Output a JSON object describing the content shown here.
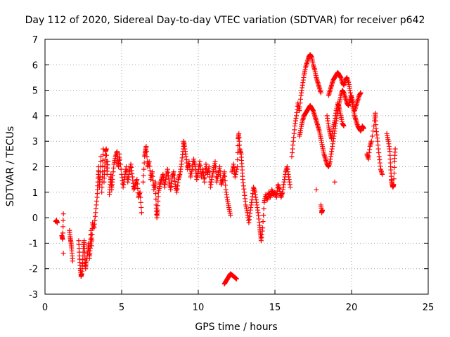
{
  "chart_data": {
    "type": "scatter",
    "title": "Day 112 of 2020, Sidereal Day-to-day VTEC variation (SDTVAR) for receiver p642",
    "xlabel": "GPS time / hours",
    "ylabel": "SDTVAR / TECUs",
    "xlim": [
      0,
      25
    ],
    "ylim": [
      -3,
      7
    ],
    "xticks": [
      0,
      5,
      10,
      15,
      20,
      25
    ],
    "yticks": [
      -3,
      -2,
      -1,
      0,
      1,
      2,
      3,
      4,
      5,
      6,
      7
    ],
    "grid": true,
    "marker": "plus",
    "color": "#ff0000",
    "series": [
      {
        "name": "SDTVAR",
        "points": [
          [
            0.7,
            -0.15
          ],
          [
            0.75,
            -0.1
          ],
          [
            0.8,
            -0.2
          ],
          [
            1.1,
            -0.7
          ],
          [
            1.15,
            -0.85
          ],
          [
            1.2,
            0.15
          ],
          [
            1.2,
            -1.4
          ],
          [
            1.6,
            -0.5
          ],
          [
            1.65,
            -0.8
          ],
          [
            1.7,
            -1.0
          ],
          [
            1.75,
            -1.3
          ],
          [
            1.8,
            -1.7
          ],
          [
            2.2,
            -0.9
          ],
          [
            2.25,
            -1.5
          ],
          [
            2.3,
            -2.0
          ],
          [
            2.35,
            -2.3
          ],
          [
            2.4,
            -2.2
          ],
          [
            2.45,
            -1.8
          ],
          [
            2.5,
            -1.2
          ],
          [
            2.55,
            -0.9
          ],
          [
            2.6,
            -1.5
          ],
          [
            2.65,
            -2.0
          ],
          [
            2.7,
            -1.7
          ],
          [
            2.8,
            -1.3
          ],
          [
            2.85,
            -1.0
          ],
          [
            2.9,
            -1.6
          ],
          [
            2.95,
            -1.2
          ],
          [
            3.0,
            -0.5
          ],
          [
            3.05,
            -1.1
          ],
          [
            3.1,
            -0.2
          ],
          [
            3.2,
            -0.4
          ],
          [
            3.3,
            0.2
          ],
          [
            3.4,
            0.8
          ],
          [
            3.45,
            1.4
          ],
          [
            3.5,
            2.0
          ],
          [
            3.55,
            1.2
          ],
          [
            3.6,
            1.6
          ],
          [
            3.65,
            2.4
          ],
          [
            3.7,
            1.0
          ],
          [
            3.75,
            1.8
          ],
          [
            3.8,
            2.7
          ],
          [
            3.85,
            1.4
          ],
          [
            3.9,
            2.0
          ],
          [
            3.95,
            2.6
          ],
          [
            4.0,
            2.7
          ],
          [
            4.05,
            1.7
          ],
          [
            4.1,
            2.2
          ],
          [
            4.2,
            0.9
          ],
          [
            4.25,
            1.3
          ],
          [
            4.3,
            1.7
          ],
          [
            4.35,
            1.1
          ],
          [
            4.4,
            1.5
          ],
          [
            4.5,
            2.1
          ],
          [
            4.6,
            2.4
          ],
          [
            4.7,
            2.6
          ],
          [
            4.75,
            2.2
          ],
          [
            4.8,
            2.0
          ],
          [
            4.85,
            2.5
          ],
          [
            5.0,
            1.7
          ],
          [
            5.1,
            1.2
          ],
          [
            5.2,
            1.6
          ],
          [
            5.3,
            2.0
          ],
          [
            5.4,
            1.4
          ],
          [
            5.5,
            1.8
          ],
          [
            5.6,
            2.1
          ],
          [
            5.7,
            1.6
          ],
          [
            5.8,
            1.1
          ],
          [
            5.9,
            1.3
          ],
          [
            6.0,
            1.5
          ],
          [
            6.1,
            0.8
          ],
          [
            6.2,
            1.0
          ],
          [
            6.3,
            0.2
          ],
          [
            6.4,
            1.4
          ],
          [
            6.5,
            2.4
          ],
          [
            6.55,
            2.6
          ],
          [
            6.6,
            2.8
          ],
          [
            6.7,
            2.0
          ],
          [
            6.8,
            2.2
          ],
          [
            6.9,
            1.5
          ],
          [
            7.0,
            1.8
          ],
          [
            7.1,
            1.1
          ],
          [
            7.2,
            1.4
          ],
          [
            7.25,
            0.5
          ],
          [
            7.3,
            0.0
          ],
          [
            7.35,
            0.3
          ],
          [
            7.4,
            1.0
          ],
          [
            7.5,
            1.3
          ],
          [
            7.6,
            1.5
          ],
          [
            7.7,
            1.7
          ],
          [
            7.8,
            1.2
          ],
          [
            7.9,
            1.6
          ],
          [
            8.0,
            1.9
          ],
          [
            8.1,
            1.4
          ],
          [
            8.2,
            1.1
          ],
          [
            8.3,
            1.6
          ],
          [
            8.4,
            1.8
          ],
          [
            8.5,
            1.3
          ],
          [
            8.6,
            1.0
          ],
          [
            8.7,
            1.5
          ],
          [
            8.8,
            1.7
          ],
          [
            8.9,
            2.1
          ],
          [
            9.0,
            2.6
          ],
          [
            9.05,
            3.0
          ],
          [
            9.1,
            2.8
          ],
          [
            9.2,
            2.4
          ],
          [
            9.3,
            1.9
          ],
          [
            9.4,
            2.2
          ],
          [
            9.5,
            1.6
          ],
          [
            9.6,
            1.9
          ],
          [
            9.7,
            2.3
          ],
          [
            9.8,
            2.0
          ],
          [
            9.9,
            1.5
          ],
          [
            10.0,
            1.8
          ],
          [
            10.1,
            2.2
          ],
          [
            10.2,
            1.6
          ],
          [
            10.3,
            1.9
          ],
          [
            10.4,
            1.4
          ],
          [
            10.5,
            2.1
          ],
          [
            10.6,
            1.7
          ],
          [
            10.7,
            2.0
          ],
          [
            10.8,
            1.2
          ],
          [
            10.9,
            1.6
          ],
          [
            11.0,
            1.9
          ],
          [
            11.1,
            2.2
          ],
          [
            11.2,
            1.4
          ],
          [
            11.3,
            1.7
          ],
          [
            11.4,
            2.0
          ],
          [
            11.5,
            1.3
          ],
          [
            11.6,
            1.5
          ],
          [
            11.7,
            1.8
          ],
          [
            11.8,
            1.1
          ],
          [
            11.9,
            0.7
          ],
          [
            12.0,
            0.4
          ],
          [
            12.1,
            0.1
          ],
          [
            12.2,
            1.8
          ],
          [
            12.3,
            2.1
          ],
          [
            12.4,
            1.6
          ],
          [
            12.55,
            2.0
          ],
          [
            12.6,
            3.1
          ],
          [
            12.65,
            3.3
          ],
          [
            12.7,
            2.7
          ],
          [
            12.8,
            2.5
          ],
          [
            12.85,
            2.0
          ],
          [
            12.9,
            1.5
          ],
          [
            13.0,
            1.0
          ],
          [
            13.1,
            0.5
          ],
          [
            13.2,
            0.2
          ],
          [
            13.3,
            -0.2
          ],
          [
            13.4,
            0.3
          ],
          [
            13.5,
            0.7
          ],
          [
            13.6,
            1.2
          ],
          [
            13.7,
            1.0
          ],
          [
            13.8,
            0.6
          ],
          [
            13.9,
            0.2
          ],
          [
            14.0,
            -0.3
          ],
          [
            14.05,
            -0.6
          ],
          [
            14.1,
            -0.9
          ],
          [
            14.2,
            -0.4
          ],
          [
            14.3,
            0.6
          ],
          [
            14.4,
            0.9
          ],
          [
            14.5,
            0.7
          ],
          [
            14.6,
            1.0
          ],
          [
            14.7,
            0.8
          ],
          [
            14.8,
            1.1
          ],
          [
            14.9,
            0.9
          ],
          [
            15.0,
            1.0
          ],
          [
            15.1,
            0.8
          ],
          [
            15.2,
            1.3
          ],
          [
            15.3,
            1.1
          ],
          [
            15.4,
            0.8
          ],
          [
            15.5,
            1.0
          ],
          [
            15.6,
            1.4
          ],
          [
            15.7,
            1.8
          ],
          [
            15.8,
            2.0
          ],
          [
            15.9,
            1.6
          ],
          [
            16.0,
            1.2
          ],
          [
            16.1,
            2.4
          ],
          [
            16.2,
            3.0
          ],
          [
            16.3,
            3.6
          ],
          [
            16.4,
            4.0
          ],
          [
            16.5,
            4.5
          ],
          [
            16.6,
            4.2
          ],
          [
            16.7,
            4.8
          ],
          [
            16.8,
            5.2
          ],
          [
            16.9,
            5.6
          ],
          [
            17.0,
            5.9
          ],
          [
            17.1,
            6.1
          ],
          [
            17.2,
            6.3
          ],
          [
            17.3,
            6.4
          ],
          [
            17.4,
            6.3
          ],
          [
            17.5,
            6.0
          ],
          [
            17.6,
            5.8
          ],
          [
            17.7,
            5.5
          ],
          [
            17.8,
            5.3
          ],
          [
            17.9,
            5.1
          ],
          [
            18.0,
            4.9
          ],
          [
            16.6,
            3.2
          ],
          [
            16.7,
            3.5
          ],
          [
            16.8,
            3.8
          ],
          [
            16.9,
            4.0
          ],
          [
            17.0,
            4.1
          ],
          [
            17.1,
            4.2
          ],
          [
            17.2,
            4.3
          ],
          [
            17.3,
            4.4
          ],
          [
            17.4,
            4.3
          ],
          [
            17.5,
            4.2
          ],
          [
            17.6,
            4.0
          ],
          [
            17.7,
            3.8
          ],
          [
            17.8,
            3.6
          ],
          [
            17.9,
            3.4
          ],
          [
            18.0,
            3.1
          ],
          [
            18.1,
            2.8
          ],
          [
            18.2,
            2.5
          ],
          [
            18.3,
            2.3
          ],
          [
            18.4,
            2.1
          ],
          [
            18.5,
            2.0
          ],
          [
            18.6,
            2.2
          ],
          [
            18.7,
            2.6
          ],
          [
            18.8,
            3.0
          ],
          [
            18.9,
            3.4
          ],
          [
            19.0,
            3.8
          ],
          [
            19.1,
            4.2
          ],
          [
            19.2,
            4.5
          ],
          [
            19.3,
            4.8
          ],
          [
            19.4,
            5.0
          ],
          [
            19.5,
            4.9
          ],
          [
            19.6,
            4.7
          ],
          [
            19.7,
            4.5
          ],
          [
            19.8,
            4.4
          ],
          [
            19.9,
            4.6
          ],
          [
            20.0,
            4.8
          ],
          [
            20.1,
            4.5
          ],
          [
            18.4,
            4.0
          ],
          [
            18.5,
            3.6
          ],
          [
            18.6,
            3.3
          ],
          [
            18.7,
            3.1
          ],
          [
            18.8,
            3.5
          ],
          [
            18.9,
            3.8
          ],
          [
            19.0,
            4.2
          ],
          [
            19.1,
            4.5
          ],
          [
            19.2,
            4.3
          ],
          [
            19.3,
            4.0
          ],
          [
            19.4,
            3.7
          ],
          [
            19.5,
            3.6
          ],
          [
            18.5,
            4.8
          ],
          [
            18.6,
            5.0
          ],
          [
            18.7,
            5.2
          ],
          [
            18.8,
            5.4
          ],
          [
            18.9,
            5.5
          ],
          [
            19.0,
            5.6
          ],
          [
            19.1,
            5.7
          ],
          [
            19.2,
            5.6
          ],
          [
            19.3,
            5.5
          ],
          [
            19.4,
            5.3
          ],
          [
            19.5,
            5.2
          ],
          [
            19.6,
            5.4
          ],
          [
            19.7,
            5.5
          ],
          [
            19.8,
            5.3
          ],
          [
            19.9,
            5.0
          ],
          [
            20.0,
            4.6
          ],
          [
            20.1,
            4.3
          ],
          [
            20.2,
            4.0
          ],
          [
            20.3,
            3.8
          ],
          [
            20.4,
            3.6
          ],
          [
            20.5,
            3.5
          ],
          [
            20.6,
            3.4
          ],
          [
            20.7,
            3.6
          ],
          [
            20.8,
            3.5
          ],
          [
            20.2,
            4.2
          ],
          [
            20.3,
            4.4
          ],
          [
            20.4,
            4.6
          ],
          [
            20.5,
            4.8
          ],
          [
            20.6,
            4.9
          ],
          [
            17.7,
            1.1
          ],
          [
            18.0,
            0.5
          ],
          [
            18.05,
            0.2
          ],
          [
            18.1,
            0.3
          ],
          [
            18.9,
            1.4
          ],
          [
            21.0,
            2.5
          ],
          [
            21.1,
            2.3
          ],
          [
            21.2,
            2.8
          ],
          [
            21.3,
            3.0
          ],
          [
            21.5,
            3.8
          ],
          [
            21.55,
            4.1
          ],
          [
            21.6,
            3.5
          ],
          [
            21.7,
            3.0
          ],
          [
            21.8,
            2.4
          ],
          [
            21.9,
            1.9
          ],
          [
            22.0,
            1.7
          ],
          [
            22.3,
            3.3
          ],
          [
            22.4,
            3.0
          ],
          [
            22.5,
            2.6
          ],
          [
            22.55,
            2.0
          ],
          [
            22.6,
            1.5
          ],
          [
            22.65,
            1.3
          ],
          [
            22.7,
            1.2
          ],
          [
            22.75,
            1.3
          ],
          [
            22.8,
            2.2
          ],
          [
            22.85,
            2.7
          ],
          [
            11.7,
            -2.6
          ],
          [
            11.8,
            -2.5
          ],
          [
            11.9,
            -2.4
          ],
          [
            12.0,
            -2.3
          ],
          [
            12.1,
            -2.2
          ],
          [
            12.2,
            -2.25
          ],
          [
            12.3,
            -2.3
          ],
          [
            12.4,
            -2.35
          ],
          [
            12.5,
            -2.4
          ]
        ]
      }
    ]
  }
}
